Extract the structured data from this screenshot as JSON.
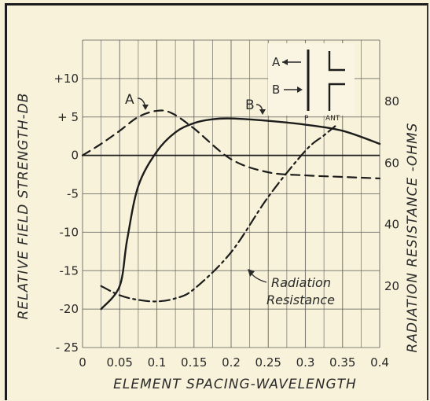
{
  "chart_data": {
    "type": "line",
    "xlabel": "ELEMENT SPACING-WAVELENGTH",
    "ylabel": "RELATIVE FIELD STRENGTH-DB",
    "y2label": "RADIATION RESISTANCE -OHMS",
    "xlim": [
      0,
      0.4
    ],
    "ylim": [
      -25,
      15
    ],
    "y2lim": [
      0,
      100
    ],
    "grid": true,
    "x_ticks": [
      {
        "value": 0,
        "label": "0"
      },
      {
        "value": 0.05,
        "label": "0.05"
      },
      {
        "value": 0.1,
        "label": "0.1"
      },
      {
        "value": 0.15,
        "label": "0.15"
      },
      {
        "value": 0.2,
        "label": "0.2"
      },
      {
        "value": 0.25,
        "label": "0.25"
      },
      {
        "value": 0.3,
        "label": "0.3"
      },
      {
        "value": 0.35,
        "label": "0.35"
      },
      {
        "value": 0.4,
        "label": "0.4"
      }
    ],
    "y_ticks": [
      {
        "value": 10,
        "label": "+10"
      },
      {
        "value": 5,
        "label": "+ 5"
      },
      {
        "value": 0,
        "label": "0"
      },
      {
        "value": -5,
        "label": "-5"
      },
      {
        "value": -10,
        "label": "-10"
      },
      {
        "value": -15,
        "label": "-15"
      },
      {
        "value": -20,
        "label": "-20"
      },
      {
        "value": -25,
        "label": "- 25"
      }
    ],
    "y2_ticks": [
      {
        "value": 80,
        "label": "80"
      },
      {
        "value": 60,
        "label": "60"
      },
      {
        "value": 40,
        "label": "40"
      },
      {
        "value": 20,
        "label": "20"
      }
    ],
    "series": [
      {
        "name": "A",
        "axis": "left",
        "style": "dashed",
        "x": [
          0,
          0.025,
          0.05,
          0.075,
          0.1,
          0.12,
          0.15,
          0.2,
          0.25,
          0.3,
          0.35,
          0.4
        ],
        "y": [
          0,
          1.5,
          3.2,
          5.0,
          5.8,
          5.5,
          3.5,
          -0.5,
          -2.2,
          -2.6,
          -2.8,
          -3.0
        ]
      },
      {
        "name": "B",
        "axis": "left",
        "style": "solid",
        "x": [
          0.025,
          0.05,
          0.06,
          0.075,
          0.1,
          0.125,
          0.15,
          0.175,
          0.2,
          0.25,
          0.3,
          0.35,
          0.4
        ],
        "y": [
          -20.0,
          -17.0,
          -11.0,
          -4.0,
          0.5,
          3.0,
          4.2,
          4.7,
          4.8,
          4.5,
          4.0,
          3.2,
          1.5
        ]
      },
      {
        "name": "Radiation Resistance",
        "axis": "right",
        "style": "dashdot",
        "x": [
          0.025,
          0.05,
          0.075,
          0.1,
          0.125,
          0.15,
          0.2,
          0.25,
          0.3,
          0.325,
          0.34
        ],
        "y": [
          20,
          17,
          15.5,
          15,
          16,
          19,
          31,
          49,
          64,
          69,
          72
        ]
      }
    ],
    "annotations": [
      {
        "text": "A",
        "series": "A"
      },
      {
        "text": "B",
        "series": "B"
      },
      {
        "text1": "Radiation",
        "text2": "Resistance",
        "series": "Radiation Resistance"
      }
    ],
    "inset": {
      "labelA": "A",
      "labelB": "B",
      "labelP": "P",
      "labelANT": "ANT"
    }
  }
}
